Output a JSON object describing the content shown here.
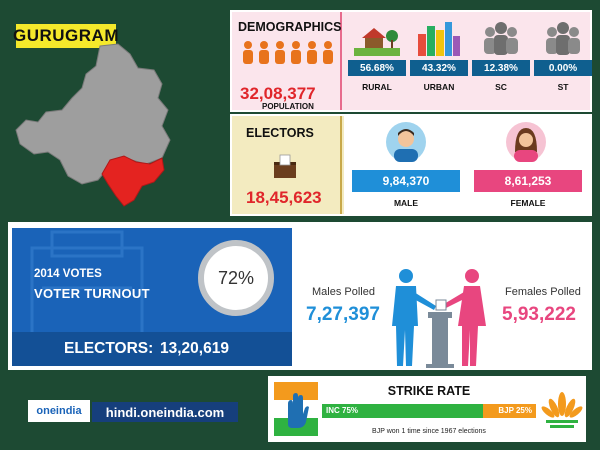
{
  "header": {
    "title": "GURUGRAM"
  },
  "colors": {
    "background": "#1d4a33",
    "title_badge": "#f5e92b",
    "highlight_red": "#e0262b",
    "map_gray": "#9e9e9e",
    "stat_blue": "#0f5f8f",
    "male_blue": "#1f8fd8",
    "female_pink": "#e8467f",
    "inc_green": "#2fb241",
    "bjp_orange": "#f39a1d"
  },
  "demographics": {
    "title": "DEMOGRAPHICS",
    "population_value": "32,08,377",
    "population_label": "POPULATION",
    "stats": [
      {
        "value": "56.68%",
        "label": "RURAL",
        "icon": "rural-house-icon"
      },
      {
        "value": "43.32%",
        "label": "URBAN",
        "icon": "city-buildings-icon"
      },
      {
        "value": "12.38%",
        "label": "SC",
        "icon": "people-group-icon"
      },
      {
        "value": "0.00%",
        "label": "ST",
        "icon": "people-group-icon"
      }
    ]
  },
  "electors": {
    "title": "ELECTORS",
    "value": "18,45,623",
    "male_value": "9,84,370",
    "male_label": "MALE",
    "female_value": "8,61,253",
    "female_label": "FEMALE"
  },
  "turnout": {
    "year_label": "2014 VOTES",
    "title": "VOTER TURNOUT",
    "percent": 72,
    "percent_label": "72%",
    "electors_label": "ELECTORS:",
    "electors_value": "13,20,619",
    "males_polled_label": "Males Polled",
    "males_polled_value": "7,27,397",
    "females_polled_label": "Females Polled",
    "females_polled_value": "5,93,222"
  },
  "footer": {
    "logo_text": "oneindia",
    "site_url": "hindi.oneindia.com"
  },
  "strike_rate": {
    "title": "STRIKE RATE",
    "inc_label": "INC 75%",
    "inc_share": 0.75,
    "bjp_label": "BJP 25%",
    "note": "BJP won 1 time since 1967 elections"
  }
}
